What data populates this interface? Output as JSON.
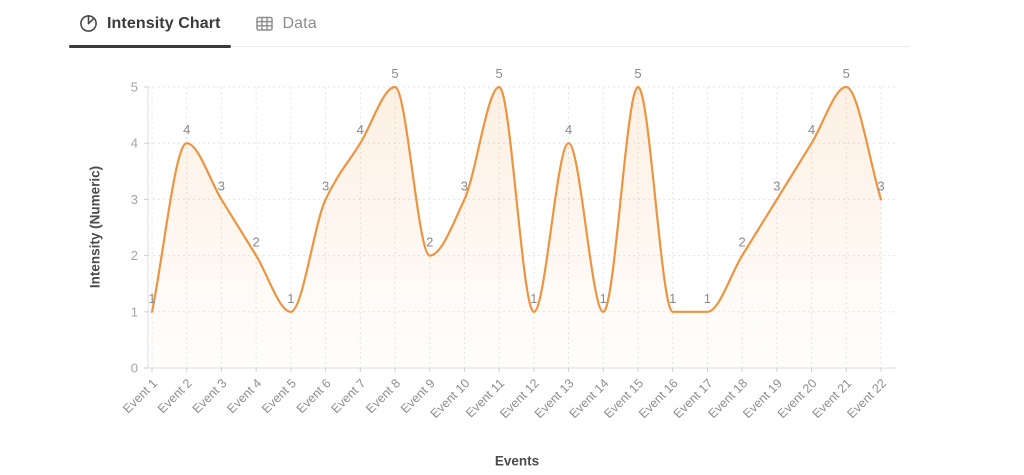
{
  "tabs": [
    {
      "label": "Intensity Chart",
      "icon": "pie-chart-icon",
      "active": true
    },
    {
      "label": "Data",
      "icon": "table-icon",
      "active": false
    }
  ],
  "chart_data": {
    "type": "line",
    "title": "",
    "xlabel": "Events",
    "ylabel": "Intensity (Numeric)",
    "categories": [
      "Event 1",
      "Event 2",
      "Event 3",
      "Event 4",
      "Event 5",
      "Event 6",
      "Event 7",
      "Event 8",
      "Event 9",
      "Event 10",
      "Event 11",
      "Event 12",
      "Event 13",
      "Event 14",
      "Event 15",
      "Event 16",
      "Event 17",
      "Event 18",
      "Event 19",
      "Event 20",
      "Event 21",
      "Event 22"
    ],
    "values": [
      1,
      4,
      3,
      2,
      1,
      3,
      4,
      5,
      2,
      3,
      5,
      1,
      4,
      1,
      5,
      1,
      1,
      2,
      3,
      4,
      5,
      3
    ],
    "point_labels": [
      "1",
      "4",
      "3",
      "2",
      "1",
      "3",
      "4",
      "5",
      "2",
      "3",
      "5",
      "1",
      "4",
      "1",
      "5",
      "1",
      "1",
      "2",
      "3",
      "4",
      "5",
      "3"
    ],
    "ylim": [
      0,
      5
    ],
    "yticks": [
      0,
      1,
      2,
      3,
      4,
      5
    ],
    "grid": true,
    "smooth": "monotone",
    "legend": "none",
    "colors": {
      "line": "#EC9440",
      "fill_top": "rgba(240,153,66,0.15)",
      "fill_bottom": "rgba(240,153,66,0.01)",
      "grid": "#E4E4E4",
      "tick_label": "#8E8E8E",
      "point_label": "#8A8A8A",
      "axis_title": "#4B4B4B"
    }
  }
}
